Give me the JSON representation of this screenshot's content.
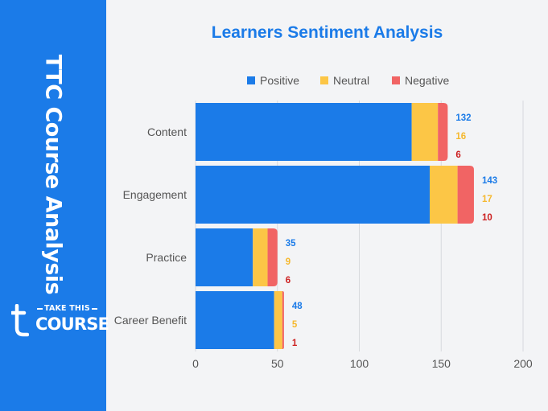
{
  "sidebar": {
    "title": "TTC Course Analysis",
    "logo_top": "TAKE THIS",
    "logo_bottom": "COURSE"
  },
  "chart_data": {
    "type": "bar",
    "orientation": "horizontal",
    "stacked": true,
    "title": "Learners Sentiment Analysis",
    "categories": [
      "Content",
      "Engagement",
      "Practice",
      "Career Benefit"
    ],
    "series": [
      {
        "name": "Positive",
        "color": "#1b7be8",
        "values": [
          132,
          143,
          35,
          48
        ]
      },
      {
        "name": "Neutral",
        "color": "#fcc646",
        "values": [
          16,
          17,
          9,
          5
        ]
      },
      {
        "name": "Negative",
        "color": "#f16464",
        "values": [
          6,
          10,
          6,
          1
        ]
      }
    ],
    "label_colors": [
      "#1b7be8",
      "#f5b82e",
      "#cc1f1f"
    ],
    "xlim": [
      0,
      200
    ],
    "xticks": [
      0,
      50,
      100,
      150,
      200
    ],
    "xlabel": "",
    "ylabel": "",
    "grid": "vertical",
    "legend_position": "top"
  }
}
